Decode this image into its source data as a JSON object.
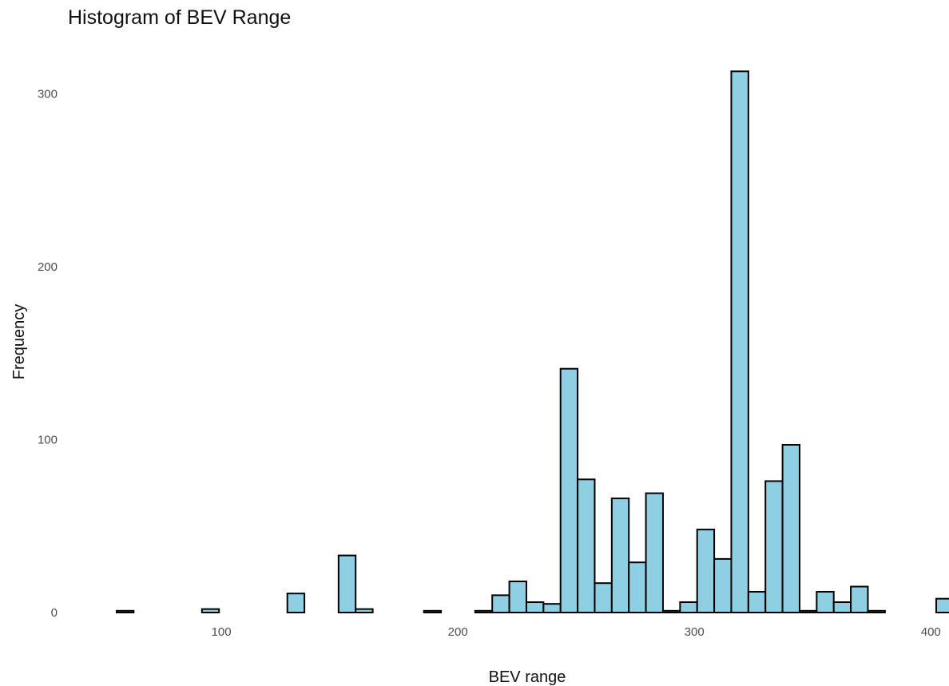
{
  "chart_data": {
    "type": "bar",
    "title": "Histogram of BEV Range",
    "xlabel": "BEV range",
    "ylabel": "Frequency",
    "xlim": [
      52,
      407
    ],
    "ylim": [
      0,
      315
    ],
    "x_ticks": [
      100,
      200,
      300,
      400
    ],
    "y_ticks": [
      0,
      100,
      200,
      300
    ],
    "bin_width": 7.22,
    "bin_start": 55.7,
    "fill_color": "#8ecfe3",
    "edge_color": "#000000",
    "grid": false,
    "counts": [
      1,
      0,
      0,
      0,
      0,
      2,
      0,
      0,
      0,
      0,
      11,
      0,
      0,
      33,
      2,
      0,
      0,
      0,
      1,
      0,
      0,
      1,
      10,
      18,
      6,
      5,
      141,
      77,
      17,
      66,
      29,
      69,
      1,
      6,
      48,
      31,
      313,
      12,
      76,
      97,
      1,
      12,
      6,
      15,
      1,
      0,
      0,
      0,
      8
    ]
  }
}
